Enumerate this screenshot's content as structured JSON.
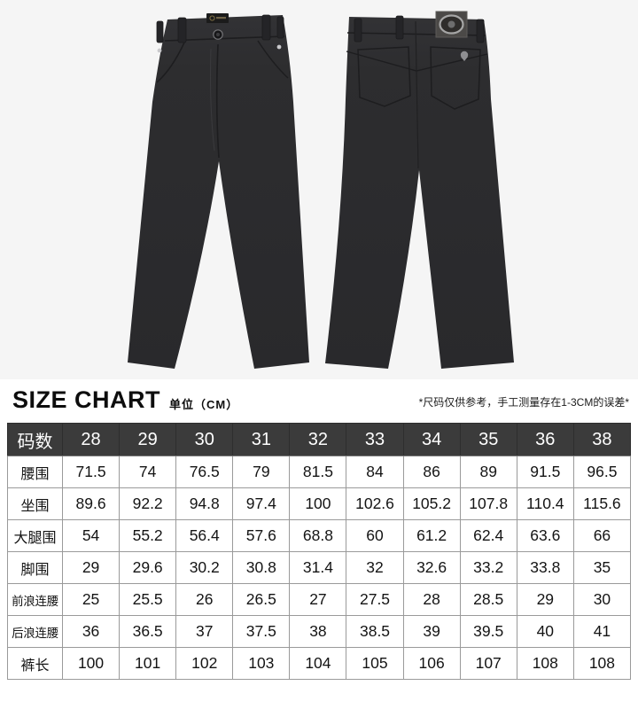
{
  "colors": {
    "photo_background": "#f5f5f5",
    "pants": "#2c2c2e",
    "table_header_bg": "#3b3b3b",
    "table_header_text": "#ffffff",
    "table_border": "#9a9a9a",
    "patch_bg": "#4b4947",
    "logo_ring_silver": "#a6a6a6"
  },
  "product_photo": {
    "views": [
      {
        "name": "front",
        "description": "black pants front view with waistband label and button"
      },
      {
        "name": "back",
        "description": "black pants back view with medusa logo patch and pocket embroidery"
      }
    ]
  },
  "size_chart": {
    "title": "SIZE CHART",
    "unit_label": "单位（CM）",
    "note": "*尺码仅供参考，手工测量存在1-3CM的误差*",
    "header": {
      "label": "码数",
      "sizes": [
        "28",
        "29",
        "30",
        "31",
        "32",
        "33",
        "34",
        "35",
        "36",
        "38"
      ]
    },
    "rows": [
      {
        "label": "腰围",
        "values": [
          "71.5",
          "74",
          "76.5",
          "79",
          "81.5",
          "84",
          "86",
          "89",
          "91.5",
          "96.5"
        ]
      },
      {
        "label": "坐围",
        "values": [
          "89.6",
          "92.2",
          "94.8",
          "97.4",
          "100",
          "102.6",
          "105.2",
          "107.8",
          "110.4",
          "115.6"
        ]
      },
      {
        "label": "大腿围",
        "values": [
          "54",
          "55.2",
          "56.4",
          "57.6",
          "68.8",
          "60",
          "61.2",
          "62.4",
          "63.6",
          "66"
        ]
      },
      {
        "label": "脚围",
        "values": [
          "29",
          "29.6",
          "30.2",
          "30.8",
          "31.4",
          "32",
          "32.6",
          "33.2",
          "33.8",
          "35"
        ]
      },
      {
        "label": "前浪连腰",
        "values": [
          "25",
          "25.5",
          "26",
          "26.5",
          "27",
          "27.5",
          "28",
          "28.5",
          "29",
          "30"
        ]
      },
      {
        "label": "后浪连腰",
        "values": [
          "36",
          "36.5",
          "37",
          "37.5",
          "38",
          "38.5",
          "39",
          "39.5",
          "40",
          "41"
        ]
      },
      {
        "label": "裤长",
        "values": [
          "100",
          "101",
          "102",
          "103",
          "104",
          "105",
          "106",
          "107",
          "108",
          "108"
        ]
      }
    ]
  }
}
